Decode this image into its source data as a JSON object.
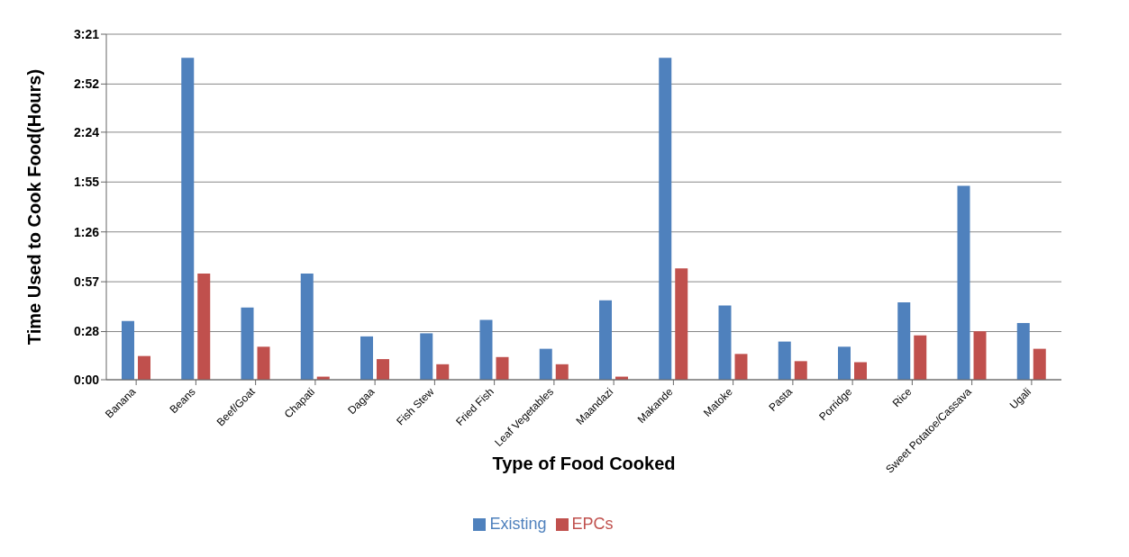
{
  "chart_data": {
    "type": "bar",
    "xlabel": "Type of Food Cooked",
    "ylabel": "Time Used to Cook Food(Hours)",
    "categories": [
      "Banana",
      "Beans",
      "Beef/Goat",
      "Chapati",
      "Dagaa",
      "Fish Stew",
      "Fried Fish",
      "Leaf Vegetables",
      "Maandazi",
      "Makande",
      "Matoke",
      "Pasta",
      "Porridge",
      "Rice",
      "Sweet Potatoe/Cassava",
      "Ugali"
    ],
    "series": [
      {
        "name": "Existing",
        "color": "#4f81bd",
        "values": [
          0.57,
          3.12,
          0.7,
          1.03,
          0.42,
          0.45,
          0.58,
          0.3,
          0.77,
          3.12,
          0.72,
          0.37,
          0.32,
          0.75,
          1.88,
          0.55
        ]
      },
      {
        "name": "EPCs",
        "color": "#c0504d",
        "values": [
          0.23,
          1.03,
          0.32,
          0.03,
          0.2,
          0.15,
          0.22,
          0.15,
          0.03,
          1.08,
          0.25,
          0.18,
          0.17,
          0.43,
          0.47,
          0.3
        ]
      }
    ],
    "ylim": [
      0,
      3.35
    ],
    "yticks": [
      {
        "value": 0,
        "label": "0:00"
      },
      {
        "value": 0.4667,
        "label": "0:28"
      },
      {
        "value": 0.95,
        "label": "0:57"
      },
      {
        "value": 1.4333,
        "label": "1:26"
      },
      {
        "value": 1.9167,
        "label": "1:55"
      },
      {
        "value": 2.4,
        "label": "2:24"
      },
      {
        "value": 2.8667,
        "label": "2:52"
      },
      {
        "value": 3.35,
        "label": "3:21"
      }
    ],
    "grid": "y",
    "legend": "bottom"
  }
}
